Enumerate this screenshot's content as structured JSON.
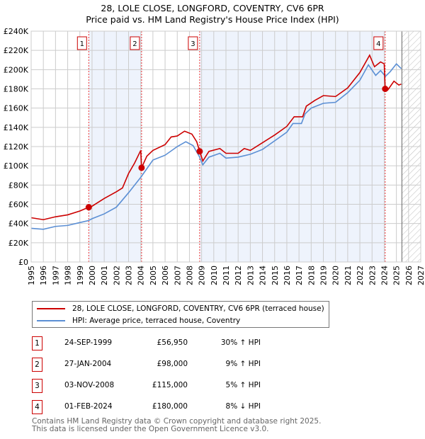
{
  "chart_data": {
    "type": "line",
    "title": "28, LOLE CLOSE, LONGFORD, COVENTRY, CV6 6PR",
    "subtitle": "Price paid vs. HM Land Registry's House Price Index (HPI)",
    "xlim": [
      1995,
      2027
    ],
    "ylim": [
      0,
      240000
    ],
    "x_ticks": [
      "1995",
      "1996",
      "1997",
      "1998",
      "1999",
      "2000",
      "2001",
      "2002",
      "2003",
      "2004",
      "2005",
      "2006",
      "2007",
      "2008",
      "2009",
      "2010",
      "2011",
      "2012",
      "2013",
      "2014",
      "2015",
      "2016",
      "2017",
      "2018",
      "2019",
      "2020",
      "2021",
      "2022",
      "2023",
      "2024",
      "2025",
      "2026",
      "2027"
    ],
    "y_ticks": [
      "£0",
      "£20K",
      "£40K",
      "£60K",
      "£80K",
      "£100K",
      "£120K",
      "£140K",
      "£160K",
      "£180K",
      "£200K",
      "£220K",
      "£240K"
    ],
    "grid": true,
    "series": [
      {
        "name": "28, LOLE CLOSE, LONGFORD, COVENTRY, CV6 6PR (terraced house)",
        "color": "#cc0000",
        "x": [
          1995,
          1996,
          1997,
          1998,
          1999,
          1999.73,
          2000,
          2001,
          2002,
          2002.5,
          2003,
          2003.5,
          2004.0,
          2004.07,
          2004.5,
          2005,
          2006,
          2006.5,
          2007,
          2007.6,
          2008.2,
          2008.6,
          2008.84,
          2009.1,
          2009.6,
          2010.5,
          2011,
          2012,
          2012.5,
          2013,
          2014,
          2015,
          2016,
          2016.6,
          2017.3,
          2017.6,
          2018.3,
          2019,
          2020,
          2021,
          2022,
          2022.8,
          2023.2,
          2023.7,
          2024.0,
          2024.08,
          2024.3,
          2024.8,
          2025.2,
          2025.4
        ],
        "y": [
          46,
          44,
          47,
          49,
          53,
          56.95,
          58,
          66,
          73,
          77,
          92,
          103,
          116,
          98,
          110,
          116,
          122,
          130,
          131,
          136,
          133,
          125,
          115,
          105,
          115,
          118,
          113,
          113,
          118,
          116,
          124,
          132,
          141,
          151,
          151,
          162,
          168,
          173,
          172,
          181,
          197,
          215,
          203,
          208,
          206,
          180,
          179,
          188,
          184,
          185
        ]
      },
      {
        "name": "HPI: Average price, terraced house, Coventry",
        "color": "#5b8fd4",
        "x": [
          1995,
          1996,
          1997,
          1998,
          1999,
          1999.7,
          2000,
          2001,
          2002,
          2003,
          2004,
          2004.5,
          2005,
          2006,
          2007,
          2007.7,
          2008.3,
          2008.8,
          2009.1,
          2009.6,
          2010.5,
          2011,
          2012,
          2013,
          2014,
          2015,
          2016,
          2016.5,
          2017.2,
          2017.5,
          2018,
          2019,
          2020,
          2021,
          2022,
          2022.7,
          2023.3,
          2023.7,
          2024.1,
          2024.5,
          2025,
          2025.4
        ],
        "y": [
          35,
          34,
          37,
          38,
          41,
          43,
          45,
          50,
          57,
          72,
          88,
          97,
          106,
          111,
          120,
          125,
          121,
          110,
          101,
          109,
          113,
          108,
          109,
          112,
          117,
          126,
          135,
          144,
          144,
          154,
          160,
          165,
          166,
          176,
          189,
          205,
          194,
          199,
          193,
          198,
          206,
          201
        ]
      }
    ],
    "y_units": "thousands GBP",
    "sales": [
      {
        "num": "1",
        "date": "24-SEP-1999",
        "price": "£56,950",
        "hpi": "30% ↑ HPI",
        "x": 1999.73,
        "y": 56.95
      },
      {
        "num": "2",
        "date": "27-JAN-2004",
        "price": "£98,000",
        "hpi": "9% ↑ HPI",
        "x": 2004.07,
        "y": 98
      },
      {
        "num": "3",
        "date": "03-NOV-2008",
        "price": "£115,000",
        "hpi": "5% ↑ HPI",
        "x": 2008.84,
        "y": 115
      },
      {
        "num": "4",
        "date": "01-FEB-2024",
        "price": "£180,000",
        "hpi": "8% ↓ HPI",
        "x": 2024.08,
        "y": 180
      }
    ],
    "forecast_start": 2025.45
  },
  "legend": {
    "property": "28, LOLE CLOSE, LONGFORD, COVENTRY, CV6 6PR (terraced house)",
    "hpi": "HPI: Average price, terraced house, Coventry"
  },
  "footer": {
    "line1": "Contains HM Land Registry data © Crown copyright and database right 2025.",
    "line2": "This data is licensed under the Open Government Licence v3.0."
  }
}
